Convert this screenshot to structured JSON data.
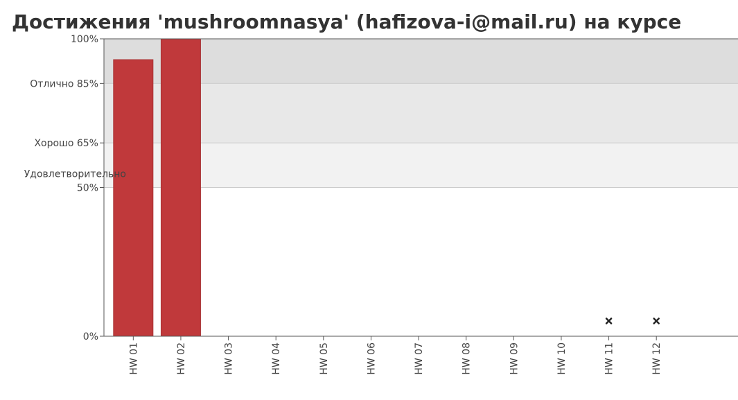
{
  "title": "Достижения 'mushroomnasya' (hafizova-i@mail.ru) на курсе",
  "chart_data": {
    "type": "bar",
    "categories": [
      "HW 01",
      "HW 02",
      "HW 03",
      "HW 04",
      "HW 05",
      "HW 06",
      "HW 07",
      "HW 08",
      "HW 09",
      "HW 10",
      "HW 11",
      "HW 12"
    ],
    "values": [
      93,
      100,
      0,
      0,
      0,
      0,
      0,
      0,
      0,
      0,
      null,
      null
    ],
    "missing_marker_categories": [
      "HW 11",
      "HW 12"
    ],
    "ylim": [
      0,
      100
    ],
    "bar_color": "#c0393b",
    "bands": [
      {
        "from": 85,
        "to": 100,
        "color": "#dddddd"
      },
      {
        "from": 65,
        "to": 85,
        "color": "#e8e8e8"
      },
      {
        "from": 50,
        "to": 65,
        "color": "#f2f2f2"
      }
    ],
    "y_ticks": [
      {
        "value": 100,
        "label": "100%"
      },
      {
        "value": 85,
        "label": "Отлично 85%"
      },
      {
        "value": 65,
        "label": "Хорошо 65%"
      },
      {
        "value": 50,
        "label_lines": [
          "Удовлетворительно",
          "50%"
        ]
      },
      {
        "value": 0,
        "label": "0%"
      }
    ]
  }
}
